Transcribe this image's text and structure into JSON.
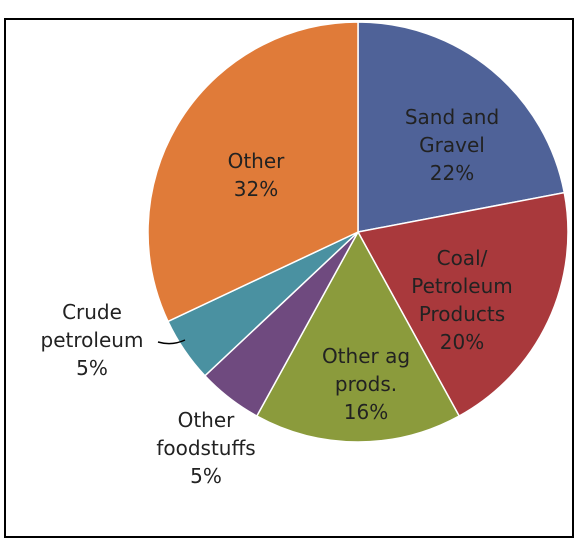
{
  "chart_data": {
    "type": "pie",
    "categories": [
      "Sand and Gravel",
      "Coal/ Petroleum Products",
      "Other ag prods.",
      "Other foodstuffs",
      "Crude petroleum",
      "Other"
    ],
    "values": [
      22,
      20,
      16,
      5,
      5,
      32
    ],
    "value_labels": [
      "22%",
      "20%",
      "16%",
      "5%",
      "5%",
      "32%"
    ],
    "colors": [
      "#4f6298",
      "#a9393c",
      "#8b9b3c",
      "#6f4a7f",
      "#4a91a1",
      "#e07b39"
    ]
  }
}
